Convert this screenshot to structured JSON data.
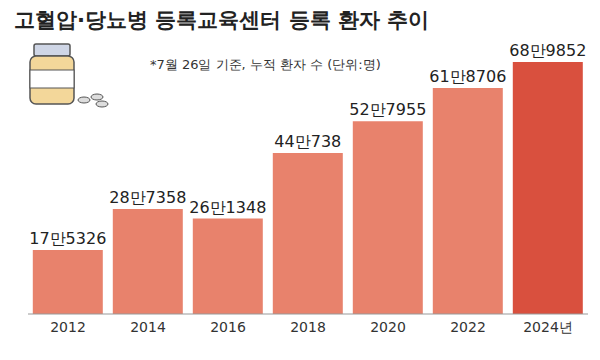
{
  "chart_data": {
    "type": "bar",
    "title": "고혈압·당뇨병 등록교육센터 등록 환자 추이",
    "subtitle": "*7월 26일 기준, 누적 환자 수 (단위:명)",
    "categories": [
      "2012",
      "2014",
      "2016",
      "2018",
      "2020",
      "2022",
      "2024년"
    ],
    "values": [
      175326,
      287358,
      261348,
      440738,
      527955,
      618706,
      689852
    ],
    "value_labels": [
      "17만5326",
      "28만7358",
      "26만1348",
      "44만738",
      "52만7955",
      "61만8706",
      "68만9852"
    ],
    "colors": [
      "#e8826c",
      "#e8826c",
      "#e8826c",
      "#e8826c",
      "#e8826c",
      "#e8826c",
      "#d9503e"
    ],
    "data_labels": true,
    "tick_labels": "x"
  }
}
